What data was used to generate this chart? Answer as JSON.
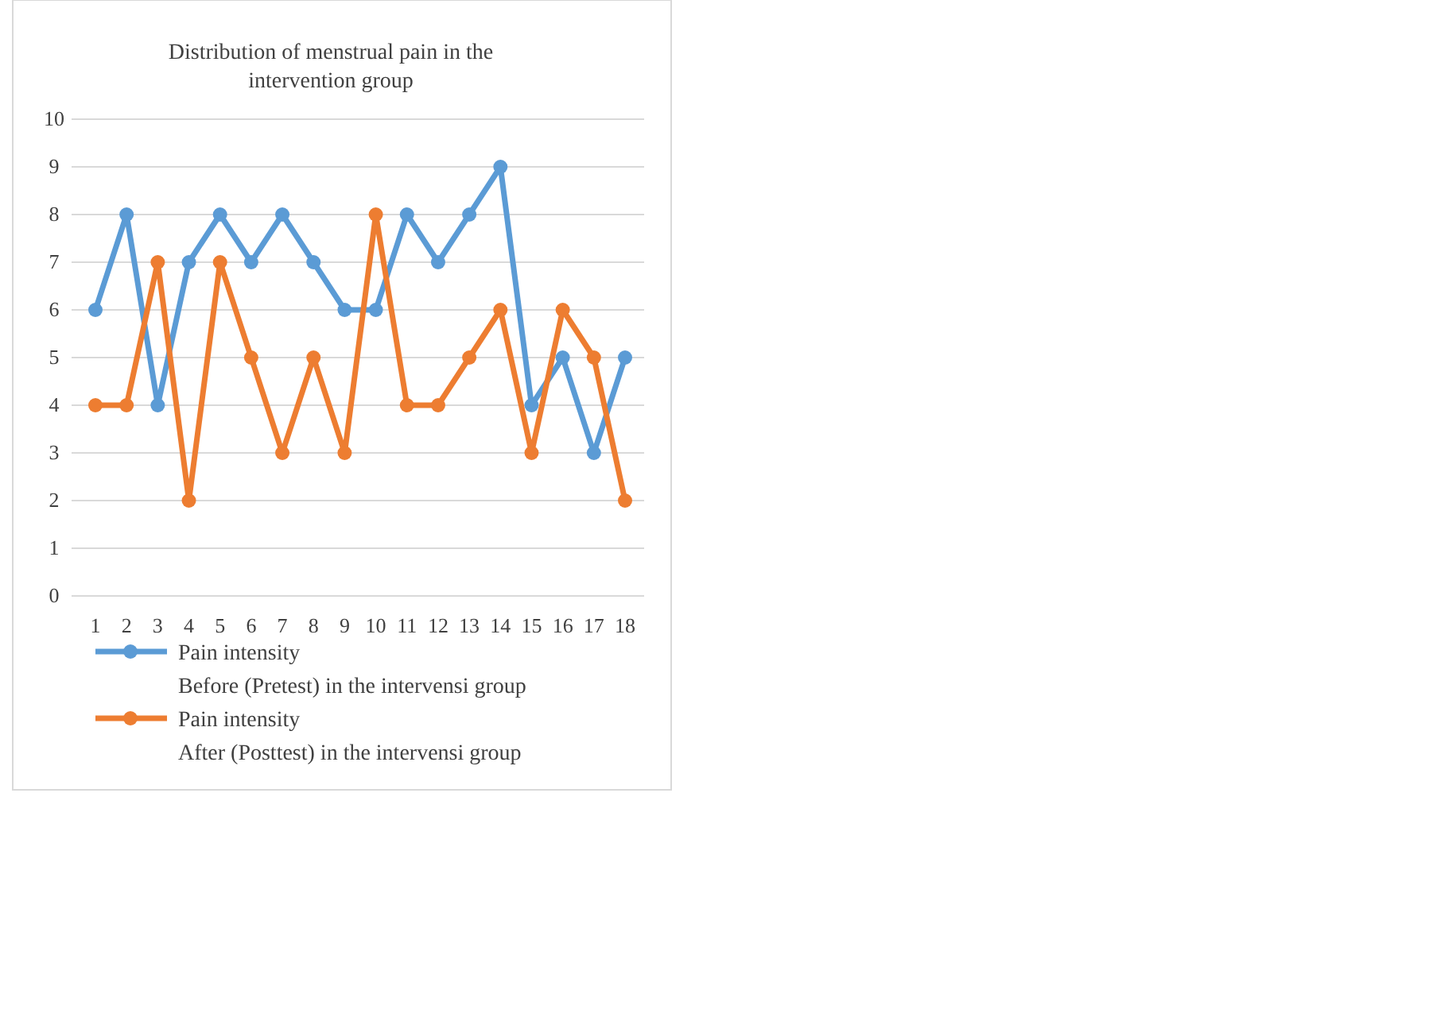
{
  "chart_data": {
    "type": "line",
    "title": "Distribution  of menstrual pain in the\nintervention  group",
    "categories": [
      "1",
      "2",
      "3",
      "4",
      "5",
      "6",
      "7",
      "8",
      "9",
      "10",
      "11",
      "12",
      "13",
      "14",
      "15",
      "16",
      "17",
      "18"
    ],
    "series": [
      {
        "name": "Pain intensity\nBefore (Pretest) in the intervensi group",
        "color": "#5b9bd5",
        "values": [
          6,
          8,
          4,
          7,
          8,
          7,
          8,
          7,
          6,
          6,
          8,
          7,
          8,
          9,
          4,
          5,
          3,
          5
        ]
      },
      {
        "name": "Pain intensity\nAfter (Posttest) in the intervensi group",
        "color": "#ed7d31",
        "values": [
          4,
          4,
          7,
          2,
          7,
          5,
          3,
          5,
          3,
          8,
          4,
          4,
          5,
          6,
          3,
          6,
          5,
          2
        ]
      }
    ],
    "ylim": [
      0,
      10
    ],
    "yticks": [
      0,
      1,
      2,
      3,
      4,
      5,
      6,
      7,
      8,
      9,
      10
    ],
    "grid": "y",
    "legend": "bottom",
    "marker": "circle",
    "line_style": "solid"
  }
}
